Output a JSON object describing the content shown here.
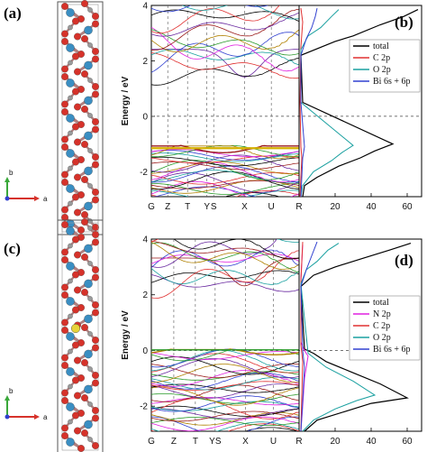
{
  "colors": {
    "bi_atom": "#3a8ec2",
    "o_atom": "#d6322a",
    "c_atom": "#9a9a9a",
    "n_atom": "#e7d23a",
    "frame": "#555555",
    "axis_b": "#3aa83a",
    "axis_a": "#d6322a",
    "fermi": "#444444",
    "total": "#000000",
    "n2p": "#e020e0",
    "c2p": "#e03030",
    "o2p": "#1aa0a0",
    "bi": "#3040d0"
  },
  "panels": [
    {
      "letter": "(a)",
      "axis_labels": [
        "b",
        "a"
      ],
      "has_n_atom": false
    },
    {
      "letter": "(b)",
      "chart_data": {
        "type": "line",
        "ylabel": "Energy / eV",
        "ylim": [
          -2.9,
          4
        ],
        "yticks": [
          "4",
          "2",
          "0",
          "-2"
        ],
        "ytick_values": [
          4,
          2,
          0,
          -2
        ],
        "kpoints": [
          "G",
          "Z",
          "T",
          "Y",
          "S",
          "X",
          "U",
          "R"
        ],
        "kpoint_positions": [
          0,
          0.111,
          0.245,
          0.376,
          0.422,
          0.631,
          0.812,
          1.0
        ],
        "dos_xticks": [
          "20",
          "40",
          "60"
        ],
        "dos_xtick_values": [
          20,
          40,
          60
        ],
        "dos_xlim": [
          0,
          68
        ],
        "dos_series": [
          {
            "name": "total",
            "color_key": "total",
            "x": [
              2,
              3,
              10,
              22,
              34,
              42,
              52,
              2,
              1,
              20,
              30,
              45,
              58,
              66
            ],
            "y": [
              -2.9,
              -2.5,
              -2.2,
              -1.8,
              -1.5,
              -1.25,
              -1.0,
              0.5,
              2.2,
              2.7,
              2.9,
              3.3,
              3.6,
              3.85
            ]
          },
          {
            "name": "C 2p",
            "color_key": "c2p",
            "x": [
              0.5,
              1,
              1.5,
              1,
              0.5,
              1,
              2,
              1
            ],
            "y": [
              -2.9,
              -2.2,
              -1.5,
              -1.1,
              0.5,
              2.5,
              3.4,
              3.9
            ]
          },
          {
            "name": "O 2p",
            "color_key": "o2p",
            "x": [
              1,
              2,
              8,
              18,
              24,
              30,
              1,
              1,
              5,
              12,
              18,
              22
            ],
            "y": [
              -2.9,
              -2.5,
              -2.0,
              -1.6,
              -1.3,
              -1.05,
              0.5,
              2.4,
              2.9,
              3.2,
              3.6,
              3.85
            ]
          },
          {
            "name": "Bi 6s + 6p",
            "color_key": "bi",
            "x": [
              1,
              1.5,
              2,
              3,
              1,
              1,
              4,
              7,
              9,
              10
            ],
            "y": [
              -2.9,
              -2.2,
              -1.5,
              -1.1,
              0.5,
              2.2,
              2.8,
              3.2,
              3.6,
              3.9
            ]
          }
        ],
        "legend": [
          "total",
          "C 2p",
          "O 2p",
          "Bi 6s + 6p"
        ],
        "legend_position": "top-right",
        "gap": [
          -1.05,
          1.4
        ]
      }
    },
    {
      "letter": "(c)",
      "axis_labels": [
        "b",
        "a"
      ],
      "has_n_atom": true
    },
    {
      "letter": "(d)",
      "chart_data": {
        "type": "line",
        "ylabel": "Energy / eV",
        "ylim": [
          -2.9,
          4
        ],
        "yticks": [
          "4",
          "2",
          "0",
          "-2"
        ],
        "ytick_values": [
          4,
          2,
          0,
          -2
        ],
        "kpoints": [
          "G",
          "Z",
          "T",
          "YS",
          "X",
          "U",
          "R"
        ],
        "kpoint_positions": [
          0,
          0.152,
          0.298,
          0.432,
          0.637,
          0.826,
          1.0
        ],
        "dos_xticks": [
          "20",
          "40",
          "60"
        ],
        "dos_xtick_values": [
          20,
          40,
          60
        ],
        "dos_xlim": [
          0,
          68
        ],
        "dos_series": [
          {
            "name": "total",
            "color_key": "total",
            "x": [
              3,
              10,
              25,
              40,
              60,
              45,
              30,
              15,
              8,
              3,
              1,
              8,
              20,
              35,
              50,
              62
            ],
            "y": [
              -2.9,
              -2.5,
              -2.2,
              -1.9,
              -1.7,
              -1.2,
              -0.8,
              -0.4,
              -0.1,
              0.05,
              2.3,
              2.7,
              3.0,
              3.3,
              3.6,
              3.85
            ]
          },
          {
            "name": "N 2p",
            "color_key": "n2p",
            "x": [
              1,
              2,
              3,
              5,
              3,
              1,
              1,
              2
            ],
            "y": [
              -2.9,
              -2.0,
              -1.0,
              -0.2,
              0.0,
              0.3,
              2.5,
              3.8
            ]
          },
          {
            "name": "C 2p",
            "color_key": "c2p",
            "x": [
              1,
              1.5,
              2,
              1,
              1,
              2
            ],
            "y": [
              -2.9,
              -1.6,
              -0.4,
              0.2,
              2.5,
              3.9
            ]
          },
          {
            "name": "O 2p",
            "color_key": "o2p",
            "x": [
              2,
              8,
              20,
              32,
              42,
              30,
              15,
              5,
              1,
              4,
              10,
              16,
              22
            ],
            "y": [
              -2.9,
              -2.5,
              -2.1,
              -1.8,
              -1.6,
              -1.1,
              -0.6,
              -0.1,
              2.4,
              2.9,
              3.2,
              3.6,
              3.85
            ]
          },
          {
            "name": "Bi 6s + 6p",
            "color_key": "bi",
            "x": [
              1,
              2,
              3,
              2,
              1,
              4,
              7,
              10
            ],
            "y": [
              -2.9,
              -1.8,
              -0.6,
              0.0,
              2.3,
              2.9,
              3.4,
              3.9
            ]
          }
        ],
        "legend": [
          "total",
          "N 2p",
          "C 2p",
          "O 2p",
          "Bi 6s + 6p"
        ],
        "legend_position": "middle-right",
        "gap": [
          0.05,
          2.3
        ]
      }
    }
  ]
}
